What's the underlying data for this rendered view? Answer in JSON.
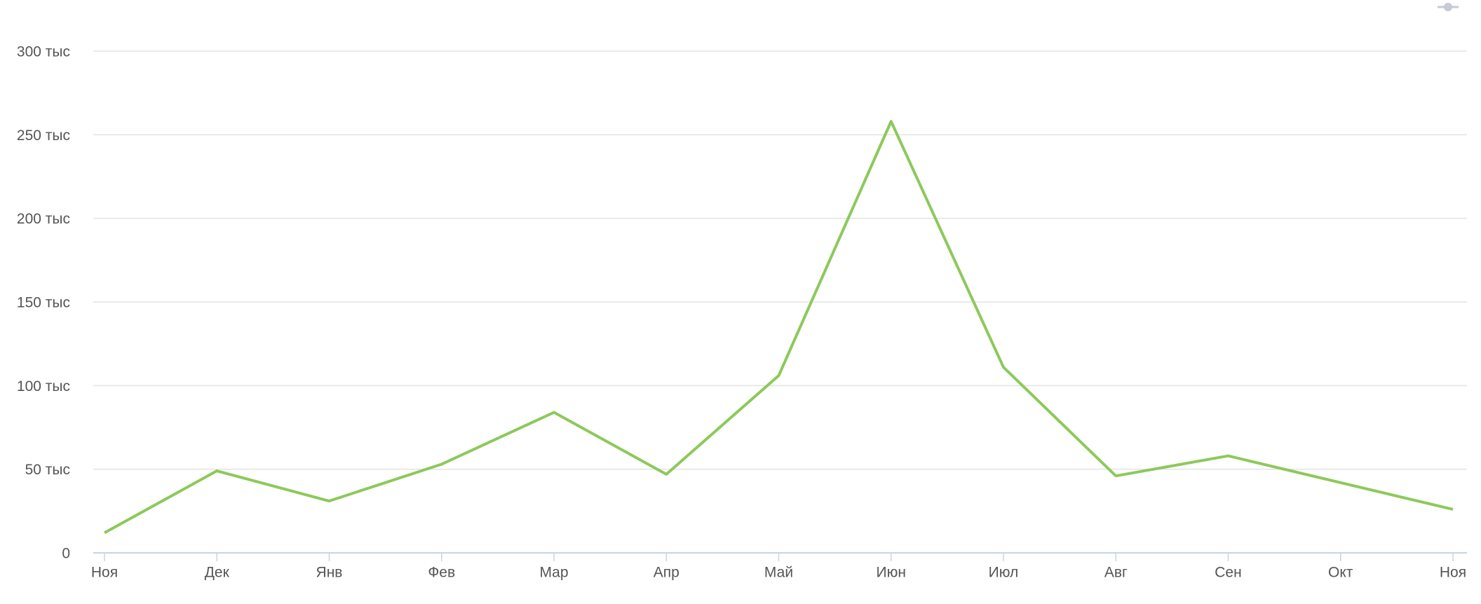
{
  "chart_data": {
    "type": "line",
    "categories": [
      "Ноя",
      "Дек",
      "Янв",
      "Фев",
      "Мар",
      "Апр",
      "Май",
      "Июн",
      "Июл",
      "Авг",
      "Сен",
      "Окт",
      "Ноя"
    ],
    "values": [
      12000,
      49000,
      31000,
      53000,
      84000,
      47000,
      106000,
      258000,
      111000,
      46000,
      58000,
      42000,
      26000
    ],
    "color": "#8cc95a",
    "ylim": [
      0,
      300000
    ],
    "yticks": [
      0,
      {
        "value": 50000,
        "label": "50 тыс"
      },
      {
        "value": 100000,
        "label": "100 тыс"
      },
      {
        "value": 150000,
        "label": "150 тыс"
      },
      {
        "value": 200000,
        "label": "200 тыс"
      },
      {
        "value": 250000,
        "label": "250 тыс"
      },
      {
        "value": 300000,
        "label": "300 тыс"
      }
    ],
    "grid": true
  }
}
